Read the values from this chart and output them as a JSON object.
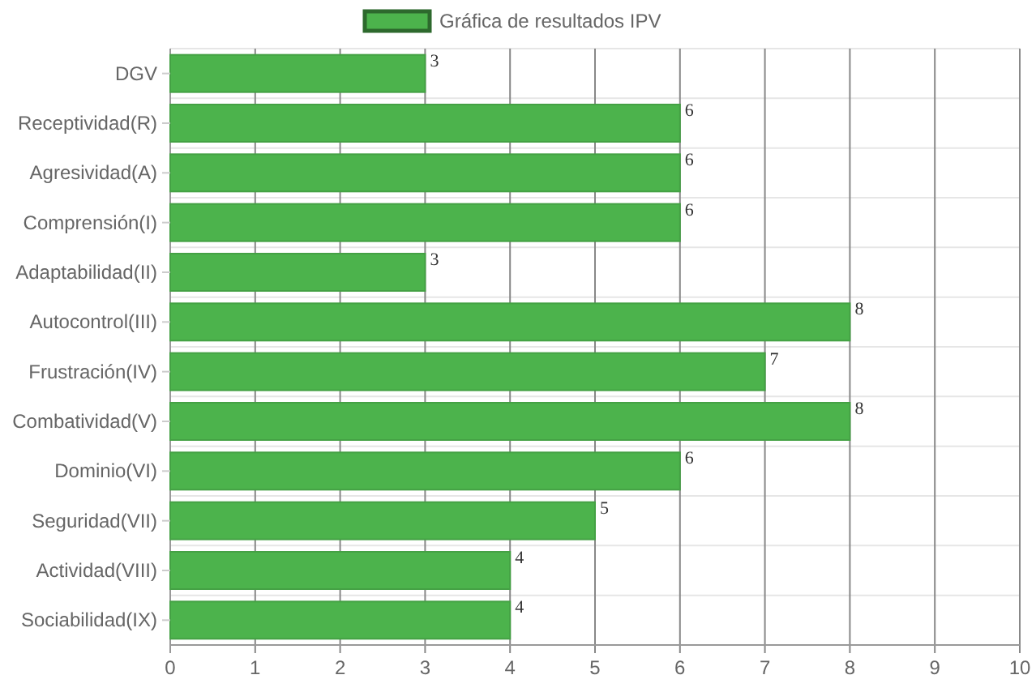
{
  "chart_data": {
    "type": "bar",
    "orientation": "horizontal",
    "categories": [
      "DGV",
      "Receptividad(R)",
      "Agresividad(A)",
      "Comprensión(I)",
      "Adaptabilidad(II)",
      "Autocontrol(III)",
      "Frustración(IV)",
      "Combatividad(V)",
      "Dominio(VI)",
      "Seguridad(VII)",
      "Actividad(VIII)",
      "Sociabilidad(IX)"
    ],
    "series": [
      {
        "name": "Gráfica de resultados IPV",
        "color": "#4cb34c",
        "values": [
          3,
          6,
          6,
          6,
          3,
          8,
          7,
          8,
          6,
          5,
          4,
          4
        ]
      }
    ],
    "xlim": [
      0,
      10
    ],
    "xticks": [
      0,
      1,
      2,
      3,
      4,
      5,
      6,
      7,
      8,
      9,
      10
    ],
    "grid": true,
    "legend": "top",
    "data_labels": true
  }
}
